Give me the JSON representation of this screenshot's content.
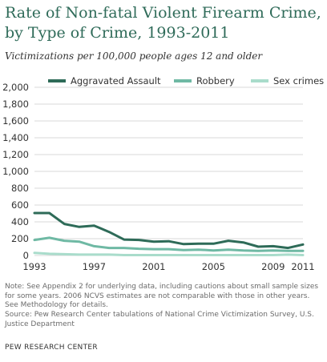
{
  "title": "Rate of Non-fatal Violent Firearm Crime, by Type of Crime, 1993-2011",
  "subtitle": "Victimizations per 100,000 people ages 12 and older",
  "note": "Note: See Appendix 2 for underlying data, including cautions about small sample sizes for some years. 2006 NCVS estimates are not comparable with those in other years. See Methodology for details.",
  "source": "Source: Pew Research Center tabulations of National Crime Victimization Survey, U.S. Justice Department",
  "credit": "PEW RESEARCH CENTER",
  "chart_data": {
    "type": "line",
    "title": "",
    "xlabel": "",
    "ylabel": "",
    "ylim": [
      0,
      2000
    ],
    "xlim": [
      1993,
      2011
    ],
    "y_ticks": [
      0,
      200,
      400,
      600,
      800,
      1000,
      1200,
      1400,
      1600,
      1800,
      2000
    ],
    "y_tick_labels": [
      "0",
      "200",
      "400",
      "600",
      "800",
      "1,000",
      "1,200",
      "1,400",
      "1,600",
      "1,800",
      "2,000"
    ],
    "x_ticks": [
      1993,
      1997,
      2001,
      2005,
      2009,
      2011
    ],
    "x_tick_labels": [
      "1993",
      "1997",
      "2001",
      "2005",
      "2009",
      "2011"
    ],
    "grid": true,
    "legend_position": "top",
    "x": [
      1993,
      1994,
      1995,
      1996,
      1997,
      1998,
      1999,
      2000,
      2001,
      2002,
      2003,
      2004,
      2005,
      2006,
      2007,
      2008,
      2009,
      2010,
      2011
    ],
    "series": [
      {
        "name": "Aggravated Assault",
        "color": "#2e6b58",
        "values": [
          505,
          505,
          375,
          340,
          355,
          280,
          190,
          185,
          165,
          170,
          135,
          140,
          140,
          175,
          155,
          105,
          110,
          90,
          130
        ]
      },
      {
        "name": "Robbery",
        "color": "#6fb9a4",
        "values": [
          185,
          210,
          175,
          165,
          110,
          90,
          90,
          80,
          75,
          75,
          65,
          70,
          60,
          70,
          60,
          55,
          60,
          55,
          55
        ]
      },
      {
        "name": "Sex crimes",
        "color": "#a9dccb",
        "values": [
          30,
          20,
          15,
          10,
          10,
          10,
          5,
          5,
          5,
          5,
          5,
          5,
          5,
          5,
          5,
          5,
          5,
          10,
          5
        ]
      }
    ]
  }
}
